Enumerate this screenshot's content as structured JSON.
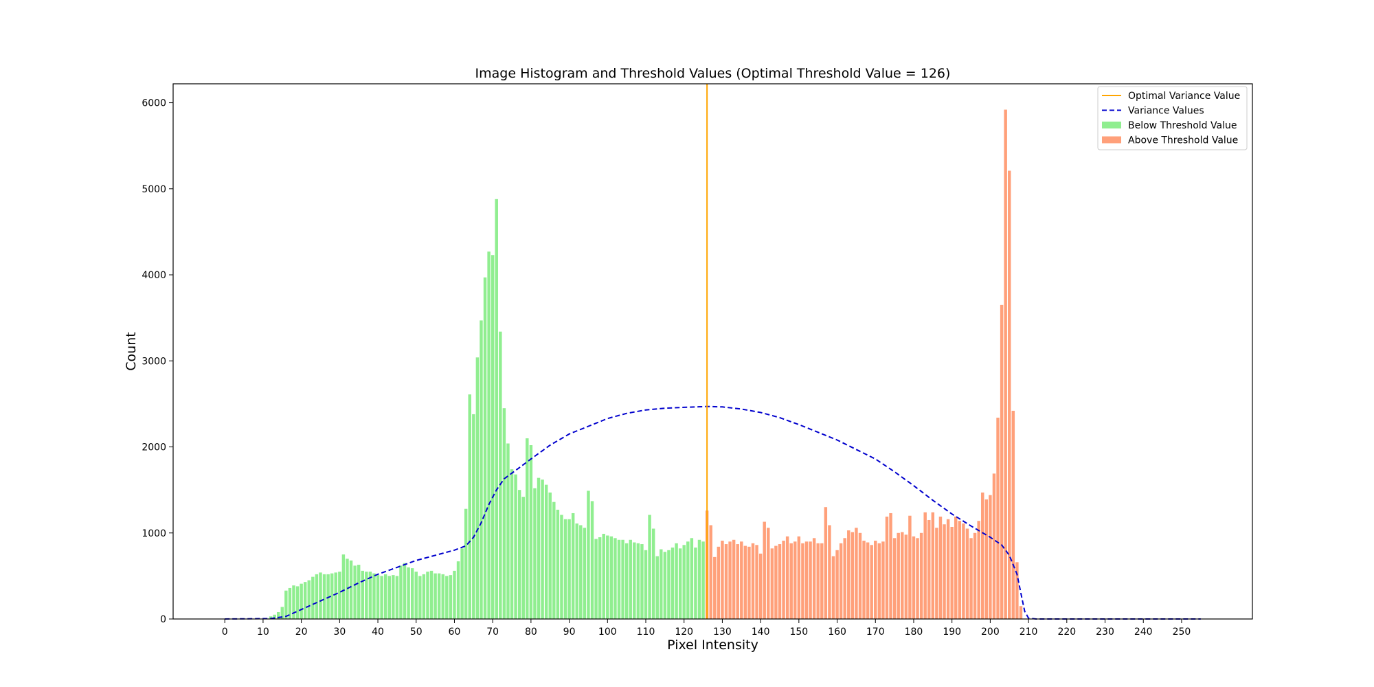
{
  "chart_data": {
    "type": "bar",
    "title": "Image Histogram and Threshold Values (Optimal Threshold Value = 126)",
    "xlabel": "Pixel Intensity",
    "ylabel": "Count",
    "xlim": [
      -13.5,
      268.5
    ],
    "ylim": [
      0,
      6220
    ],
    "xticks": [
      0,
      10,
      20,
      30,
      40,
      50,
      60,
      70,
      80,
      90,
      100,
      110,
      120,
      130,
      140,
      150,
      160,
      170,
      180,
      190,
      200,
      210,
      220,
      230,
      240,
      250
    ],
    "yticks": [
      0,
      1000,
      2000,
      3000,
      4000,
      5000,
      6000
    ],
    "grid": false,
    "legend_position": "top-right",
    "threshold": 126,
    "colors": {
      "below": "#90ee90",
      "above": "#ffa07a",
      "variance": "#0000cd",
      "optimal": "#ffa500"
    },
    "series": [
      {
        "name": "Below Threshold Value",
        "x_start": 0,
        "values": [
          0,
          0,
          0,
          0,
          0,
          0,
          0,
          0,
          0,
          0,
          0,
          0,
          30,
          50,
          80,
          140,
          330,
          360,
          390,
          380,
          410,
          430,
          450,
          490,
          520,
          540,
          520,
          520,
          530,
          540,
          550,
          750,
          700,
          680,
          620,
          630,
          560,
          550,
          550,
          530,
          510,
          500,
          520,
          500,
          510,
          500,
          620,
          650,
          600,
          590,
          550,
          500,
          520,
          550,
          560,
          530,
          530,
          520,
          500,
          510,
          560,
          670,
          820,
          1280,
          2610,
          2380,
          3040,
          3470,
          3970,
          4270,
          4230,
          4880,
          3340,
          2450,
          2040,
          1740,
          1680,
          1500,
          1420,
          2100,
          2020,
          1520,
          1640,
          1620,
          1560,
          1470,
          1360,
          1270,
          1210,
          1160,
          1160,
          1230,
          1110,
          1090,
          1060,
          1490,
          1370,
          930,
          950,
          990,
          970,
          960,
          940,
          920,
          920,
          880,
          920,
          890,
          880,
          870,
          800,
          1210,
          1050,
          730,
          810,
          780,
          800,
          830,
          880,
          820,
          860,
          900,
          940,
          830,
          920,
          900
        ]
      },
      {
        "name": "Above Threshold Value",
        "x_start": 126,
        "values": [
          1260,
          1090,
          720,
          840,
          910,
          870,
          900,
          920,
          870,
          900,
          850,
          840,
          880,
          860,
          760,
          1130,
          1060,
          820,
          850,
          870,
          910,
          960,
          880,
          900,
          960,
          880,
          900,
          900,
          940,
          880,
          880,
          1300,
          1090,
          730,
          800,
          880,
          940,
          1030,
          1010,
          1060,
          1000,
          910,
          890,
          860,
          910,
          880,
          900,
          1190,
          1230,
          940,
          1000,
          1010,
          980,
          1200,
          960,
          940,
          1000,
          1240,
          1150,
          1240,
          1060,
          1190,
          1100,
          1160,
          1070,
          1190,
          1140,
          1110,
          1050,
          940,
          1000,
          1140,
          1470,
          1390,
          1440,
          1690,
          2340,
          3650,
          5920,
          5210,
          2420,
          660,
          150,
          0,
          0,
          0,
          0,
          0,
          0,
          0,
          0,
          0,
          0,
          0,
          0,
          0,
          0,
          0,
          0,
          0,
          0,
          0,
          0,
          0,
          0,
          0,
          0,
          0,
          0,
          0,
          0,
          0,
          0,
          0,
          0,
          0,
          0,
          0,
          0,
          0,
          0,
          0,
          0,
          0,
          0,
          0,
          0,
          0,
          0,
          0
        ]
      },
      {
        "name": "Variance Values",
        "style": "dashed-line",
        "points": [
          [
            0,
            0
          ],
          [
            12,
            5
          ],
          [
            16,
            30
          ],
          [
            20,
            110
          ],
          [
            25,
            210
          ],
          [
            30,
            310
          ],
          [
            35,
            420
          ],
          [
            40,
            520
          ],
          [
            45,
            600
          ],
          [
            50,
            680
          ],
          [
            55,
            740
          ],
          [
            60,
            800
          ],
          [
            63,
            850
          ],
          [
            65,
            950
          ],
          [
            67,
            1120
          ],
          [
            69,
            1330
          ],
          [
            71,
            1500
          ],
          [
            73,
            1630
          ],
          [
            77,
            1760
          ],
          [
            80,
            1860
          ],
          [
            85,
            2020
          ],
          [
            90,
            2150
          ],
          [
            95,
            2240
          ],
          [
            100,
            2330
          ],
          [
            105,
            2390
          ],
          [
            110,
            2430
          ],
          [
            115,
            2450
          ],
          [
            120,
            2460
          ],
          [
            126,
            2470
          ],
          [
            130,
            2465
          ],
          [
            135,
            2440
          ],
          [
            140,
            2400
          ],
          [
            145,
            2340
          ],
          [
            150,
            2260
          ],
          [
            155,
            2170
          ],
          [
            160,
            2080
          ],
          [
            165,
            1970
          ],
          [
            170,
            1860
          ],
          [
            175,
            1710
          ],
          [
            180,
            1550
          ],
          [
            185,
            1380
          ],
          [
            190,
            1220
          ],
          [
            195,
            1080
          ],
          [
            200,
            950
          ],
          [
            203,
            860
          ],
          [
            205,
            740
          ],
          [
            207,
            520
          ],
          [
            208,
            300
          ],
          [
            209,
            90
          ],
          [
            210,
            10
          ],
          [
            212,
            0
          ],
          [
            255,
            0
          ]
        ]
      },
      {
        "name": "Optimal Variance Value",
        "style": "vertical-line",
        "x": 126
      }
    ]
  }
}
